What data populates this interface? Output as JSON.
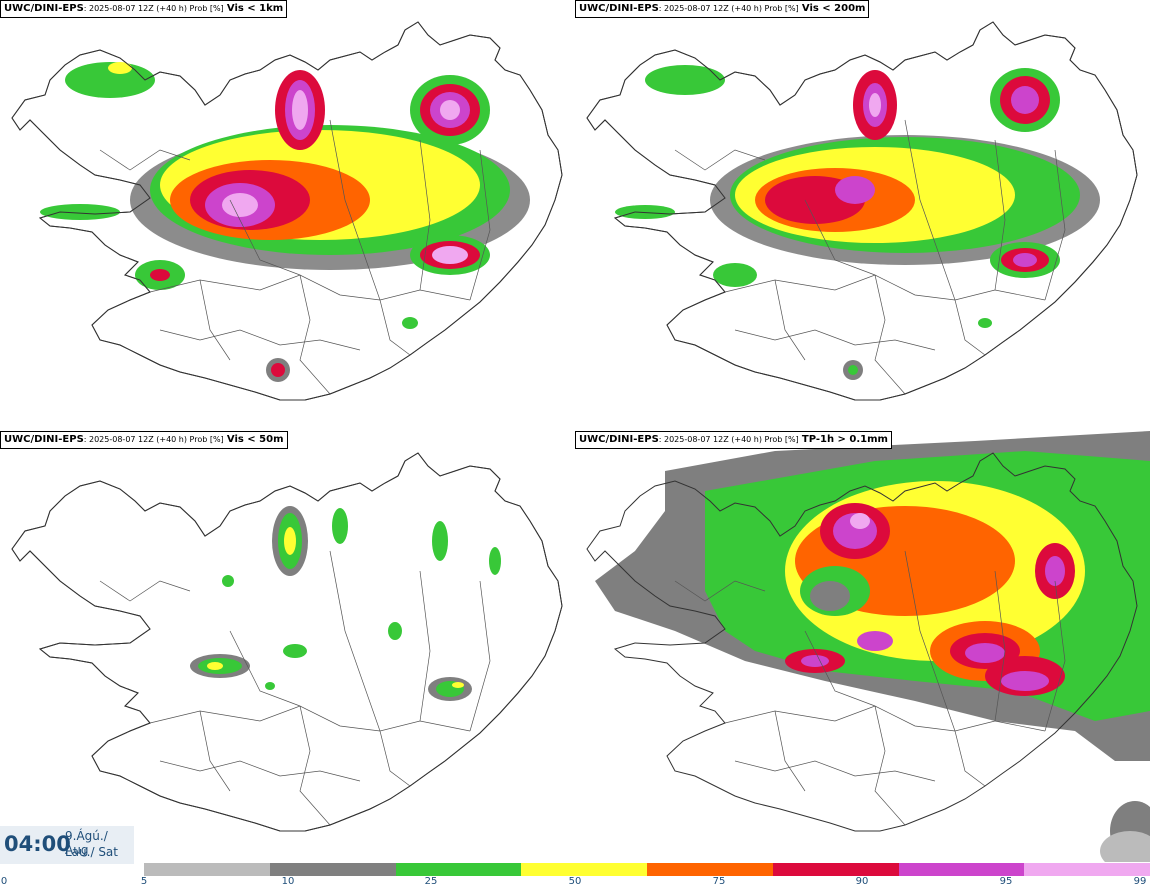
{
  "panels": [
    {
      "model": "UWC/DINI-EPS",
      "meta": ": 2025-08-07 12Z (+40 h) Prob [%]",
      "variable": "Vis < 1km"
    },
    {
      "model": "UWC/DINI-EPS",
      "meta": ": 2025-08-07 12Z (+40 h) Prob [%]",
      "variable": "Vis < 200m"
    },
    {
      "model": "UWC/DINI-EPS",
      "meta": ": 2025-08-07 12Z (+40 h) Prob [%]",
      "variable": "Vis < 50m"
    },
    {
      "model": "UWC/DINI-EPS",
      "meta": ": 2025-08-07 12Z (+40 h) Prob [%]",
      "variable": "TP-1h > 0.1mm"
    }
  ],
  "time": {
    "clock": "04:00",
    "date": "9.Ágú./ Aug",
    "day": "Lau./ Sat"
  },
  "legend": {
    "ticks": [
      "0",
      "5",
      "10",
      "25",
      "50",
      "75",
      "90",
      "95",
      "99"
    ],
    "colors": [
      "#bbbbbb",
      "#7f7f7f",
      "#38c838",
      "#ffff32",
      "#ff6400",
      "#dc0a3c",
      "#cc44cc",
      "#f0a8f0"
    ]
  }
}
